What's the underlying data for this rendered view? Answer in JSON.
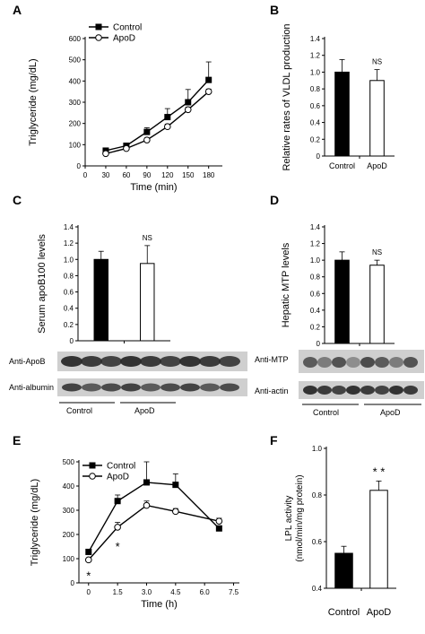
{
  "panels": {
    "A": {
      "letter": "A"
    },
    "B": {
      "letter": "B"
    },
    "C": {
      "letter": "C"
    },
    "D": {
      "letter": "D"
    },
    "E": {
      "letter": "E"
    },
    "F": {
      "letter": "F"
    }
  },
  "blots": {
    "C": {
      "rows": [
        "Anti-ApoB",
        "Anti-albumin"
      ],
      "groups": [
        "Control",
        "ApoD"
      ]
    },
    "D": {
      "rows": [
        "Anti-MTP",
        "Anti-actin"
      ],
      "groups": [
        "Control",
        "ApoD"
      ]
    }
  },
  "colors": {
    "control": "#000000",
    "apod": "#ffffff",
    "axis": "#000000",
    "blot_bg": "#cfcfcf",
    "band": "#2a2a2a"
  },
  "chart_data": [
    {
      "id": "A",
      "type": "line",
      "xlabel": "Time (min)",
      "ylabel": "Triglyceride (mg/dL)",
      "x": [
        30,
        60,
        90,
        120,
        150,
        180
      ],
      "xticks": [
        0,
        30,
        60,
        90,
        120,
        150,
        180
      ],
      "xlim": [
        0,
        200
      ],
      "yticks": [
        0,
        100,
        200,
        300,
        400,
        500,
        600
      ],
      "ylim": [
        0,
        600
      ],
      "legend": "top-left",
      "series": [
        {
          "name": "Control",
          "marker": "square-filled",
          "values": [
            72,
            95,
            160,
            230,
            300,
            405
          ],
          "errors": [
            10,
            10,
            20,
            40,
            60,
            85
          ]
        },
        {
          "name": "ApoD",
          "marker": "circle-open",
          "values": [
            58,
            82,
            122,
            185,
            265,
            350
          ],
          "errors": [
            5,
            5,
            10,
            12,
            12,
            12
          ]
        }
      ]
    },
    {
      "id": "B",
      "type": "bar",
      "ylabel": "Relative rates of VLDL production",
      "categories": [
        "Control",
        "ApoD"
      ],
      "values": [
        1.0,
        0.9
      ],
      "errors": [
        0.15,
        0.13
      ],
      "yticks": [
        "0",
        "0.2",
        "0.4",
        "0.6",
        "0.8",
        "1.0",
        "1.2",
        "1.4"
      ],
      "ylim": [
        0,
        1.4
      ],
      "annotations": [
        "NS"
      ]
    },
    {
      "id": "C",
      "type": "bar",
      "ylabel": "Serum apoB100 levels",
      "categories": [
        "Control",
        "ApoD"
      ],
      "values": [
        1.0,
        0.95
      ],
      "errors": [
        0.1,
        0.22
      ],
      "yticks": [
        "0",
        "0.2",
        "0.4",
        "0.6",
        "0.8",
        "1.0",
        "1.2",
        "1.4"
      ],
      "ylim": [
        0,
        1.4
      ],
      "annotations": [
        "NS"
      ]
    },
    {
      "id": "D",
      "type": "bar",
      "ylabel": "Hepatic MTP levels",
      "categories": [
        "Control",
        "ApoD"
      ],
      "values": [
        1.0,
        0.94
      ],
      "errors": [
        0.1,
        0.06
      ],
      "yticks": [
        "0",
        "0.2",
        "0.4",
        "0.6",
        "0.8",
        "1.0",
        "1.2",
        "1.4"
      ],
      "ylim": [
        0,
        1.4
      ],
      "annotations": [
        "NS"
      ]
    },
    {
      "id": "E",
      "type": "line",
      "xlabel": "Time (h)",
      "ylabel": "Triglyceride (mg/dL)",
      "x": [
        0,
        1.5,
        3.0,
        4.5,
        6.75
      ],
      "xticks": [
        "0",
        "1.5",
        "3.0",
        "4.5",
        "6.0",
        "7.5"
      ],
      "xlim": [
        -0.5,
        7.8
      ],
      "yticks": [
        0,
        100,
        200,
        300,
        400,
        500
      ],
      "ylim": [
        0,
        500
      ],
      "legend": "top-left",
      "series": [
        {
          "name": "Control",
          "marker": "square-filled",
          "values": [
            128,
            338,
            415,
            405,
            225
          ],
          "errors": [
            0,
            25,
            85,
            45,
            0
          ]
        },
        {
          "name": "ApoD",
          "marker": "circle-open",
          "values": [
            95,
            230,
            320,
            295,
            255
          ],
          "errors": [
            0,
            20,
            18,
            12,
            12
          ]
        }
      ],
      "annotations": [
        "*",
        "*"
      ]
    },
    {
      "id": "F",
      "type": "bar",
      "ylabel": "LPL activity",
      "ylabel2": "(nmol/min/mg protein)",
      "categories": [
        "Control",
        "ApoD"
      ],
      "values": [
        0.55,
        0.82
      ],
      "errors": [
        0.03,
        0.04
      ],
      "yticks": [
        "0.4",
        "0.6",
        "0.8",
        "1.0"
      ],
      "ylim": [
        0.4,
        1.0
      ],
      "annotations": [
        "* *"
      ]
    }
  ]
}
